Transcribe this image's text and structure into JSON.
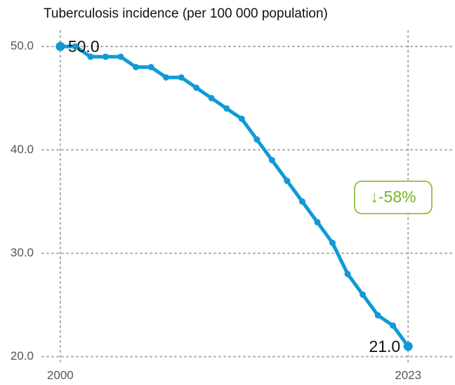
{
  "chart_data": {
    "type": "line",
    "title": "Tuberculosis incidence (per 100 000 population)",
    "x": [
      2000,
      2001,
      2002,
      2003,
      2004,
      2005,
      2006,
      2007,
      2008,
      2009,
      2010,
      2011,
      2012,
      2013,
      2014,
      2015,
      2016,
      2017,
      2018,
      2019,
      2020,
      2021,
      2022,
      2023
    ],
    "series": [
      {
        "name": "Tuberculosis incidence",
        "color": "#0f9ad6",
        "values": [
          50,
          50,
          49,
          49,
          49,
          48,
          48,
          47,
          47,
          46,
          45,
          44,
          43,
          41,
          39,
          37,
          35,
          33,
          31,
          28,
          26,
          24,
          23,
          21
        ],
        "value_labels": [
          "50.0",
          null,
          null,
          null,
          null,
          null,
          null,
          null,
          null,
          null,
          null,
          null,
          null,
          null,
          null,
          null,
          null,
          null,
          null,
          null,
          null,
          null,
          null,
          "21.0"
        ]
      }
    ],
    "annotation": "↓-58%",
    "annotation_color": "#7ab51d",
    "xlim": [
      1998.8,
      2026.1
    ],
    "xticks": [
      2000,
      2023
    ],
    "ylim": [
      19.5,
      51.5
    ],
    "yticks": [
      {
        "value": 20,
        "label": "20.0"
      },
      {
        "value": 30,
        "label": "30.0"
      },
      {
        "value": 40,
        "label": "40.0"
      },
      {
        "value": 50,
        "label": "50.0"
      }
    ],
    "grid": true
  }
}
